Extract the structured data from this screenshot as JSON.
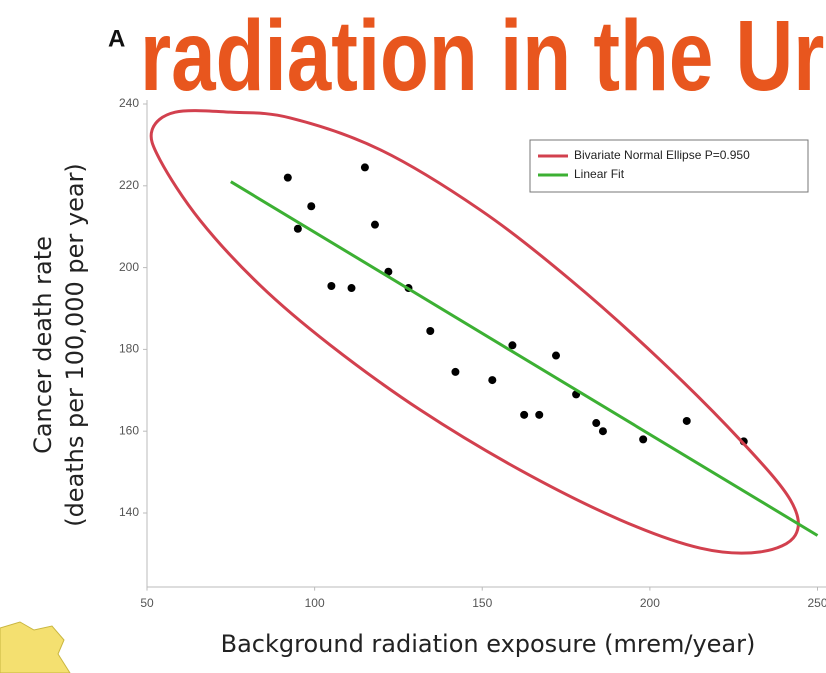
{
  "chart_data": {
    "type": "scatter",
    "title_prefix": "A",
    "title": "radiation in the Ur",
    "y_label_lines": [
      "Cancer death rate",
      "(deaths per 100,000 per year)"
    ],
    "x_label": "Background radiation exposure (mrem/year)",
    "xlim": [
      50,
      250
    ],
    "ylim": [
      122,
      240
    ],
    "xticks": [
      50,
      100,
      150,
      200,
      250
    ],
    "yticks": [
      140,
      160,
      180,
      200,
      220,
      240
    ],
    "legend": "upper right",
    "series": [
      {
        "type": "scatter",
        "color": "#000000",
        "x": [
          92,
          95,
          99,
          105,
          111,
          115,
          118,
          122,
          128,
          134.5,
          142,
          153,
          159,
          162.5,
          167,
          172,
          178,
          184,
          186,
          198,
          211,
          228
        ],
        "values": [
          222,
          209.5,
          215,
          195.5,
          195,
          224.5,
          210.5,
          199,
          195,
          184.5,
          174.5,
          172.5,
          181,
          164,
          164,
          178.5,
          169,
          162,
          160,
          158,
          162.5,
          157.5
        ]
      },
      {
        "type": "closed-curve",
        "name": "Bivariate Normal Ellipse P=0.950",
        "color": "#d2404e",
        "x": [
          58.4,
          51.5,
          53.9,
          65.8,
          83.7,
          104.6,
          131.5,
          161.3,
          191.2,
          215.1,
          233,
          243.4,
          241.9,
          227,
          203.1,
          176.3,
          149.4,
          119.6,
          92.7,
          74.8
        ],
        "values": [
          238,
          233.6,
          226.3,
          211.6,
          195.7,
          181.1,
          165.2,
          150.5,
          138.3,
          131.4,
          130.5,
          134.6,
          143.2,
          157.8,
          177.4,
          197,
          214.1,
          228.8,
          236.6,
          238
        ]
      },
      {
        "type": "line",
        "name": "Linear Fit",
        "color": "#3cb033",
        "x": [
          75,
          250
        ],
        "values": [
          221,
          134.5
        ]
      }
    ]
  }
}
